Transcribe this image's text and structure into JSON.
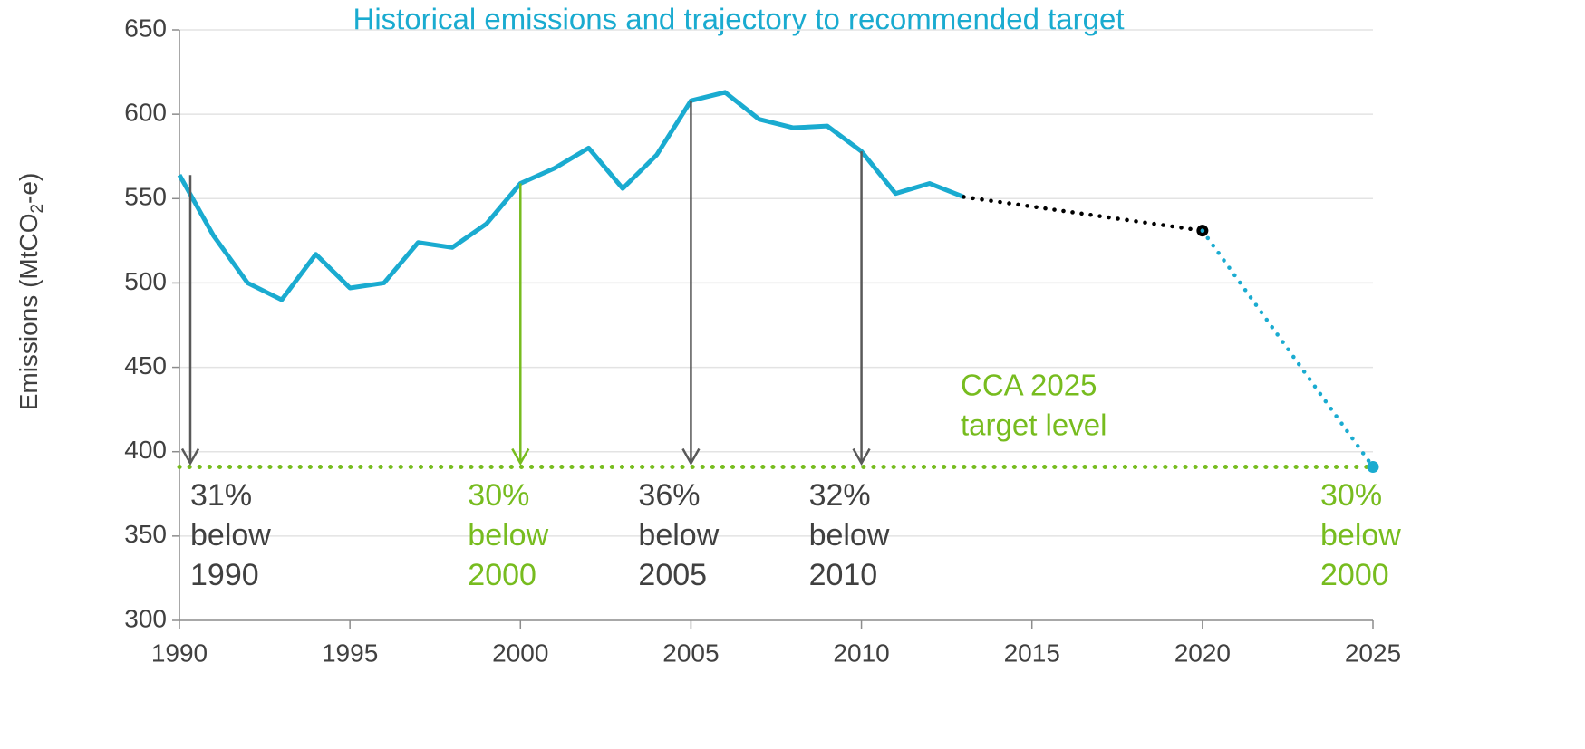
{
  "chart_data": {
    "type": "line",
    "title": "Historical emissions and trajectory to recommended target",
    "title_color": "#1aabd0",
    "ylabel": [
      "Emissions (MtCO",
      "2",
      "-e)"
    ],
    "xlim": [
      1990,
      2025
    ],
    "xticks": [
      1990,
      1995,
      2000,
      2005,
      2010,
      2015,
      2020,
      2025
    ],
    "ylim": [
      300,
      650
    ],
    "yticks": [
      300,
      350,
      400,
      450,
      500,
      550,
      600,
      650
    ],
    "grid": true,
    "series": [
      {
        "color": "#1aabd0",
        "style": "solid",
        "end_marker": false,
        "x": [
          1990,
          1991,
          1992,
          1993,
          1994,
          1995,
          1996,
          1997,
          1998,
          1999,
          2000,
          2001,
          2002,
          2003,
          2004,
          2005,
          2006,
          2007,
          2008,
          2009,
          2010,
          2011,
          2012,
          2013
        ],
        "values": [
          564,
          528,
          500,
          490,
          517,
          497,
          500,
          524,
          521,
          535,
          559,
          568,
          580,
          556,
          576,
          608,
          613,
          597,
          592,
          593,
          578,
          553,
          559,
          551
        ]
      },
      {
        "color": "#000000",
        "style": "dotted",
        "end_marker": true,
        "x": [
          2013,
          2020
        ],
        "values": [
          551,
          531
        ]
      },
      {
        "color": "#1aabd0",
        "style": "dotted",
        "end_marker": true,
        "x": [
          2020,
          2025
        ],
        "values": [
          531,
          391
        ]
      }
    ],
    "target": {
      "value": 391,
      "color": "#77bc1f",
      "label": [
        "CCA 2025",
        "target level"
      ]
    },
    "reductions": [
      {
        "year": 1990,
        "color": "#404040",
        "label": [
          "31%",
          "below",
          "1990"
        ]
      },
      {
        "year": 2000,
        "color": "#77bc1f",
        "label": [
          "30%",
          "below",
          "2000"
        ]
      },
      {
        "year": 2005,
        "color": "#404040",
        "label": [
          "36%",
          "below",
          "2005"
        ]
      },
      {
        "year": 2010,
        "color": "#404040",
        "label": [
          "32%",
          "below",
          "2010"
        ]
      },
      {
        "year": 2025,
        "color": "#77bc1f",
        "label": [
          "30%",
          "below",
          "2000"
        ]
      }
    ]
  }
}
